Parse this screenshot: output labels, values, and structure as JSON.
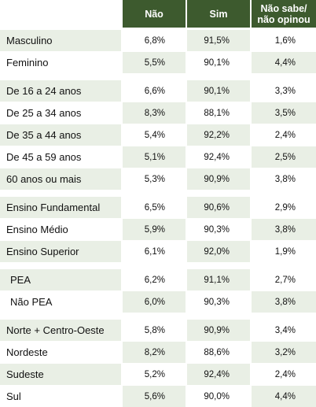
{
  "header": {
    "nao": "Não",
    "sim": "Sim",
    "nsno_line1": "Não sabe/",
    "nsno_line2": "não opinou"
  },
  "groups": [
    {
      "rows": [
        {
          "label": "Masculino",
          "nao": "6,8%",
          "sim": "91,5%",
          "nsno": "1,6%"
        },
        {
          "label": "Feminino",
          "nao": "5,5%",
          "sim": "90,1%",
          "nsno": "4,4%"
        }
      ]
    },
    {
      "rows": [
        {
          "label": "De 16 a 24 anos",
          "nao": "6,6%",
          "sim": "90,1%",
          "nsno": "3,3%"
        },
        {
          "label": "De 25 a 34 anos",
          "nao": "8,3%",
          "sim": "88,1%",
          "nsno": "3,5%"
        },
        {
          "label": "De 35 a 44 anos",
          "nao": "5,4%",
          "sim": "92,2%",
          "nsno": "2,4%"
        },
        {
          "label": "De 45 a 59 anos",
          "nao": "5,1%",
          "sim": "92,4%",
          "nsno": "2,5%"
        },
        {
          "label": "60 anos ou mais",
          "nao": "5,3%",
          "sim": "90,9%",
          "nsno": "3,8%"
        }
      ]
    },
    {
      "rows": [
        {
          "label": "Ensino Fundamental",
          "nao": "6,5%",
          "sim": "90,6%",
          "nsno": "2,9%"
        },
        {
          "label": "Ensino Médio",
          "nao": "5,9%",
          "sim": "90,3%",
          "nsno": "3,8%"
        },
        {
          "label": "Ensino Superior",
          "nao": "6,1%",
          "sim": "92,0%",
          "nsno": "1,9%"
        }
      ]
    },
    {
      "rows": [
        {
          "label": "PEA",
          "nao": "6,2%",
          "sim": "91,1%",
          "nsno": "2,7%",
          "indent": true
        },
        {
          "label": "Não PEA",
          "nao": "6,0%",
          "sim": "90,3%",
          "nsno": "3,8%",
          "indent": true
        }
      ]
    },
    {
      "rows": [
        {
          "label": "Norte + Centro-Oeste",
          "nao": "5,8%",
          "sim": "90,9%",
          "nsno": "3,4%"
        },
        {
          "label": "Nordeste",
          "nao": "8,2%",
          "sim": "88,6%",
          "nsno": "3,2%"
        },
        {
          "label": "Sudeste",
          "nao": "5,2%",
          "sim": "92,4%",
          "nsno": "2,4%"
        },
        {
          "label": "Sul",
          "nao": "5,6%",
          "sim": "90,0%",
          "nsno": "4,4%"
        }
      ]
    }
  ]
}
